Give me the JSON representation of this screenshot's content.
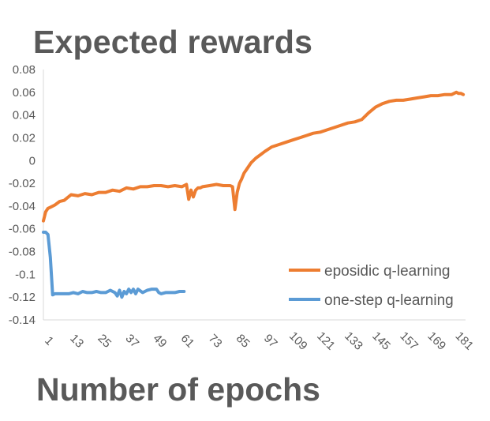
{
  "chart_data": {
    "type": "line",
    "title": "Expected rewards",
    "xlabel": "Number of epochs",
    "ylabel": "",
    "grid": false,
    "legend_position": "bottom-right",
    "x_tick_labels": [
      "1",
      "13",
      "25",
      "37",
      "49",
      "61",
      "73",
      "85",
      "97",
      "109",
      "121",
      "133",
      "145",
      "157",
      "169",
      "181"
    ],
    "y_tick_labels": [
      "0.08",
      "0.06",
      "0.04",
      "0.02",
      "0",
      "-0.02",
      "-0.04",
      "-0.06",
      "-0.08",
      "-0.1",
      "-0.12",
      "-0.14"
    ],
    "xlim": [
      1,
      184
    ],
    "ylim": [
      -0.14,
      0.08
    ],
    "axis_color": "#d9d9d9",
    "series": [
      {
        "name": "eposidic q-learning",
        "color": "#ED7D31",
        "x": [
          1,
          2,
          3,
          4,
          6,
          8,
          10,
          13,
          16,
          19,
          22,
          25,
          28,
          31,
          34,
          37,
          40,
          43,
          46,
          49,
          52,
          55,
          58,
          61,
          63,
          64,
          65,
          66,
          67,
          68,
          69,
          70,
          73,
          76,
          79,
          82,
          83,
          84,
          85,
          86,
          87,
          88,
          89,
          91,
          93,
          95,
          97,
          100,
          103,
          106,
          109,
          112,
          115,
          118,
          121,
          124,
          127,
          130,
          133,
          136,
          139,
          142,
          145,
          148,
          151,
          154,
          157,
          160,
          163,
          166,
          169,
          172,
          175,
          178,
          180,
          181,
          182,
          183
        ],
        "values": [
          -0.053,
          -0.045,
          -0.042,
          -0.041,
          -0.039,
          -0.036,
          -0.035,
          -0.03,
          -0.031,
          -0.029,
          -0.03,
          -0.028,
          -0.028,
          -0.026,
          -0.027,
          -0.024,
          -0.025,
          -0.023,
          -0.023,
          -0.022,
          -0.022,
          -0.023,
          -0.022,
          -0.023,
          -0.021,
          -0.034,
          -0.026,
          -0.032,
          -0.026,
          -0.024,
          -0.024,
          -0.023,
          -0.022,
          -0.021,
          -0.022,
          -0.022,
          -0.023,
          -0.043,
          -0.028,
          -0.02,
          -0.016,
          -0.011,
          -0.008,
          -0.002,
          0.002,
          0.005,
          0.008,
          0.012,
          0.014,
          0.016,
          0.018,
          0.02,
          0.022,
          0.024,
          0.025,
          0.027,
          0.029,
          0.031,
          0.033,
          0.034,
          0.036,
          0.042,
          0.047,
          0.05,
          0.052,
          0.053,
          0.053,
          0.054,
          0.055,
          0.056,
          0.057,
          0.057,
          0.058,
          0.058,
          0.06,
          0.059,
          0.059,
          0.058
        ]
      },
      {
        "name": "one-step q-learning",
        "color": "#5B9BD5",
        "x": [
          1,
          2,
          3,
          4,
          5,
          6,
          8,
          10,
          12,
          14,
          16,
          18,
          20,
          22,
          24,
          26,
          28,
          30,
          32,
          33,
          34,
          35,
          36,
          37,
          38,
          39,
          40,
          41,
          42,
          44,
          46,
          48,
          50,
          51,
          52,
          54,
          56,
          58,
          60,
          62
        ],
        "values": [
          -0.063,
          -0.063,
          -0.065,
          -0.085,
          -0.118,
          -0.117,
          -0.117,
          -0.117,
          -0.117,
          -0.116,
          -0.117,
          -0.115,
          -0.116,
          -0.116,
          -0.115,
          -0.116,
          -0.116,
          -0.114,
          -0.116,
          -0.119,
          -0.114,
          -0.12,
          -0.115,
          -0.117,
          -0.113,
          -0.116,
          -0.113,
          -0.117,
          -0.113,
          -0.116,
          -0.114,
          -0.113,
          -0.113,
          -0.116,
          -0.117,
          -0.116,
          -0.116,
          -0.116,
          -0.115,
          -0.115
        ]
      }
    ]
  }
}
